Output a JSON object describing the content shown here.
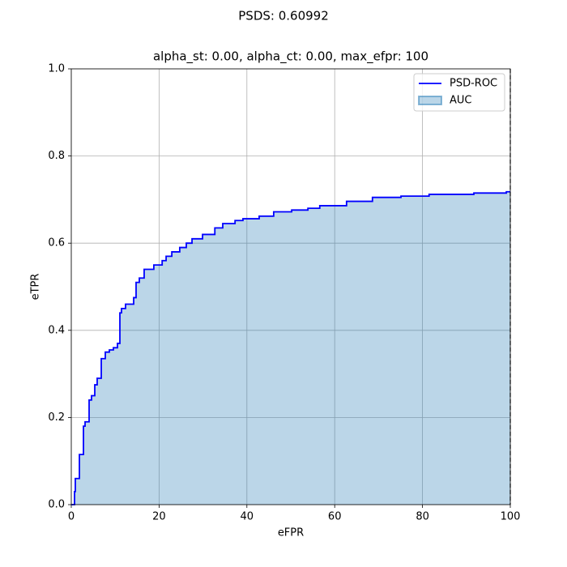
{
  "chart_data": {
    "type": "step-area",
    "suptitle": "PSDS: 0.60992",
    "title": "alpha_st: 0.00, alpha_ct: 0.00, max_efpr: 100",
    "x_label": "eFPR",
    "y_label": "eTPR",
    "x": [
      0,
      0.74,
      0.92,
      1.85,
      2.77,
      3.14,
      4.06,
      4.61,
      5.35,
      5.9,
      6.83,
      7.75,
      8.67,
      9.59,
      10.52,
      11.07,
      11.44,
      12.36,
      14.21,
      14.76,
      15.5,
      16.6,
      18.8,
      20.7,
      21.6,
      22.9,
      24.7,
      26.2,
      27.5,
      29.9,
      32.7,
      34.5,
      37.3,
      39.1,
      42.8,
      46.1,
      50.2,
      53.9,
      56.6,
      62.7,
      68.6,
      75.1,
      81.5,
      91.7,
      99.1,
      100
    ],
    "series": [
      {
        "name": "PSD-ROC",
        "color": "#0000ff",
        "values": [
          0,
          0.03,
          0.06,
          0.115,
          0.18,
          0.19,
          0.24,
          0.25,
          0.275,
          0.29,
          0.335,
          0.35,
          0.355,
          0.36,
          0.37,
          0.44,
          0.45,
          0.46,
          0.475,
          0.51,
          0.52,
          0.54,
          0.55,
          0.56,
          0.57,
          0.58,
          0.59,
          0.6,
          0.61,
          0.62,
          0.635,
          0.645,
          0.652,
          0.656,
          0.662,
          0.672,
          0.676,
          0.68,
          0.686,
          0.696,
          0.705,
          0.708,
          0.712,
          0.715,
          0.718,
          0.718
        ]
      }
    ],
    "fill": {
      "name": "AUC",
      "color": "#1f77b4"
    },
    "xlim": [
      0,
      100
    ],
    "ylim": [
      0,
      1
    ],
    "xticks": [
      0,
      20,
      40,
      60,
      80,
      100
    ],
    "yticks": [
      {
        "value": 0,
        "label": "0.0"
      },
      {
        "value": 0.2,
        "label": "0.2"
      },
      {
        "value": 0.4,
        "label": "0.4"
      },
      {
        "value": 0.6,
        "label": "0.6"
      },
      {
        "value": 0.8,
        "label": "0.8"
      },
      {
        "value": 1,
        "label": "1.0"
      }
    ],
    "grid": true,
    "legend": "upper right"
  }
}
